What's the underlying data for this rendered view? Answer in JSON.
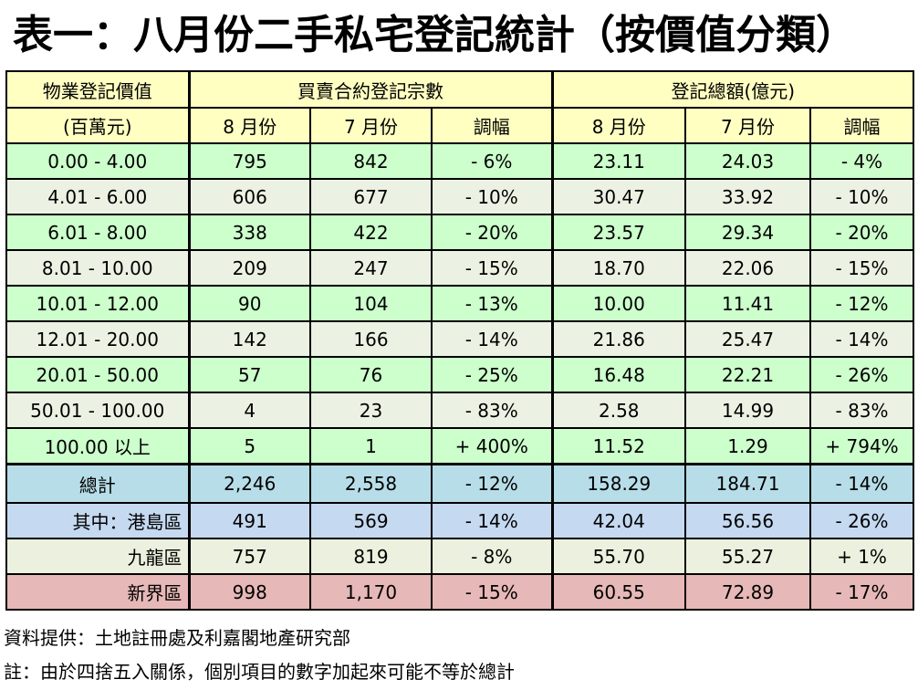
{
  "title": "表一：八月份二手私宅登記統計（按價值分類）",
  "headers": {
    "col1_line1": "物業登記價值",
    "col1_line2": "(百萬元)",
    "group_count": "買賣合約登記宗數",
    "group_amount": "登記總額(億元)",
    "aug": "8 月份",
    "jul": "7 月份",
    "change": "調幅"
  },
  "rows": [
    {
      "range": "0.00 - 4.00",
      "cnt_aug": "795",
      "cnt_jul": "842",
      "cnt_chg": "- 6%",
      "amt_aug": "23.11",
      "amt_jul": "24.03",
      "amt_chg": "- 4%"
    },
    {
      "range": "4.01 - 6.00",
      "cnt_aug": "606",
      "cnt_jul": "677",
      "cnt_chg": "- 10%",
      "amt_aug": "30.47",
      "amt_jul": "33.92",
      "amt_chg": "- 10%"
    },
    {
      "range": "6.01 - 8.00",
      "cnt_aug": "338",
      "cnt_jul": "422",
      "cnt_chg": "- 20%",
      "amt_aug": "23.57",
      "amt_jul": "29.34",
      "amt_chg": "- 20%"
    },
    {
      "range": "8.01 - 10.00",
      "cnt_aug": "209",
      "cnt_jul": "247",
      "cnt_chg": "- 15%",
      "amt_aug": "18.70",
      "amt_jul": "22.06",
      "amt_chg": "- 15%"
    },
    {
      "range": "10.01 - 12.00",
      "cnt_aug": "90",
      "cnt_jul": "104",
      "cnt_chg": "- 13%",
      "amt_aug": "10.00",
      "amt_jul": "11.41",
      "amt_chg": "- 12%"
    },
    {
      "range": "12.01 - 20.00",
      "cnt_aug": "142",
      "cnt_jul": "166",
      "cnt_chg": "- 14%",
      "amt_aug": "21.86",
      "amt_jul": "25.47",
      "amt_chg": "- 14%"
    },
    {
      "range": "20.01 - 50.00",
      "cnt_aug": "57",
      "cnt_jul": "76",
      "cnt_chg": "- 25%",
      "amt_aug": "16.48",
      "amt_jul": "22.21",
      "amt_chg": "- 26%"
    },
    {
      "range": "50.01 - 100.00",
      "cnt_aug": "4",
      "cnt_jul": "23",
      "cnt_chg": "- 83%",
      "amt_aug": "2.58",
      "amt_jul": "14.99",
      "amt_chg": "- 83%"
    },
    {
      "range": "100.00 以上",
      "cnt_aug": "5",
      "cnt_jul": "1",
      "cnt_chg": "+ 400%",
      "amt_aug": "11.52",
      "amt_jul": "1.29",
      "amt_chg": "+ 794%"
    }
  ],
  "total": {
    "label": "總計",
    "cnt_aug": "2,246",
    "cnt_jul": "2,558",
    "cnt_chg": "- 12%",
    "amt_aug": "158.29",
    "amt_jul": "184.71",
    "amt_chg": "- 14%"
  },
  "hk": {
    "label": "其中：港島區",
    "cnt_aug": "491",
    "cnt_jul": "569",
    "cnt_chg": "- 14%",
    "amt_aug": "42.04",
    "amt_jul": "56.56",
    "amt_chg": "- 26%"
  },
  "kln": {
    "label": "九龍區",
    "cnt_aug": "757",
    "cnt_jul": "819",
    "cnt_chg": "- 8%",
    "amt_aug": "55.70",
    "amt_jul": "55.27",
    "amt_chg": "+ 1%"
  },
  "nt": {
    "label": "新界區",
    "cnt_aug": "998",
    "cnt_jul": "1,170",
    "cnt_chg": "- 15%",
    "amt_aug": "60.55",
    "amt_jul": "72.89",
    "amt_chg": "- 17%"
  },
  "source": "資料提供：土地註冊處及利嘉閣地產研究部",
  "note": "註：由於四捨五入關係，個別項目的數字加起來可能不等於總計",
  "colors": {
    "header_bg": "#ffffc2",
    "row_green": "#ccffcc",
    "row_light": "#ecf2e3",
    "total_bg": "#b7dde8",
    "hk_bg": "#c5d9f1",
    "kln_bg": "#ebf1de",
    "nt_bg": "#e6b8b7"
  }
}
